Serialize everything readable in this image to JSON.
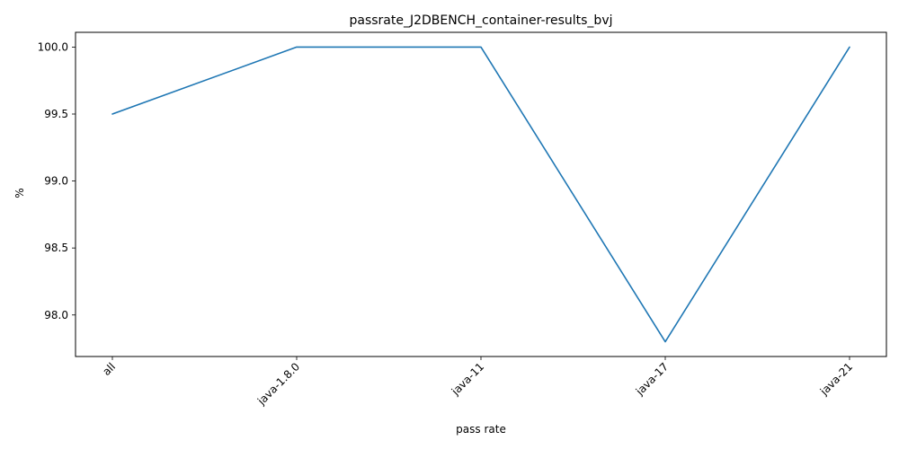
{
  "chart_data": {
    "type": "line",
    "title": "passrate_J2DBENCH_container-results_bvj",
    "xlabel": "pass rate",
    "ylabel": "%",
    "categories": [
      "all",
      "java-1.8.0",
      "java-11",
      "java-17",
      "java-21"
    ],
    "series": [
      {
        "values": [
          99.5,
          100.0,
          100.0,
          97.8,
          100.0
        ],
        "color": "#1f77b4"
      }
    ],
    "ylim": [
      97.69,
      100.11
    ],
    "yticks": [
      98.0,
      98.5,
      99.0,
      99.5,
      100.0
    ],
    "ytick_labels": [
      "98.0",
      "98.5",
      "99.0",
      "99.5",
      "100.0"
    ],
    "grid": false,
    "legend": "none"
  }
}
